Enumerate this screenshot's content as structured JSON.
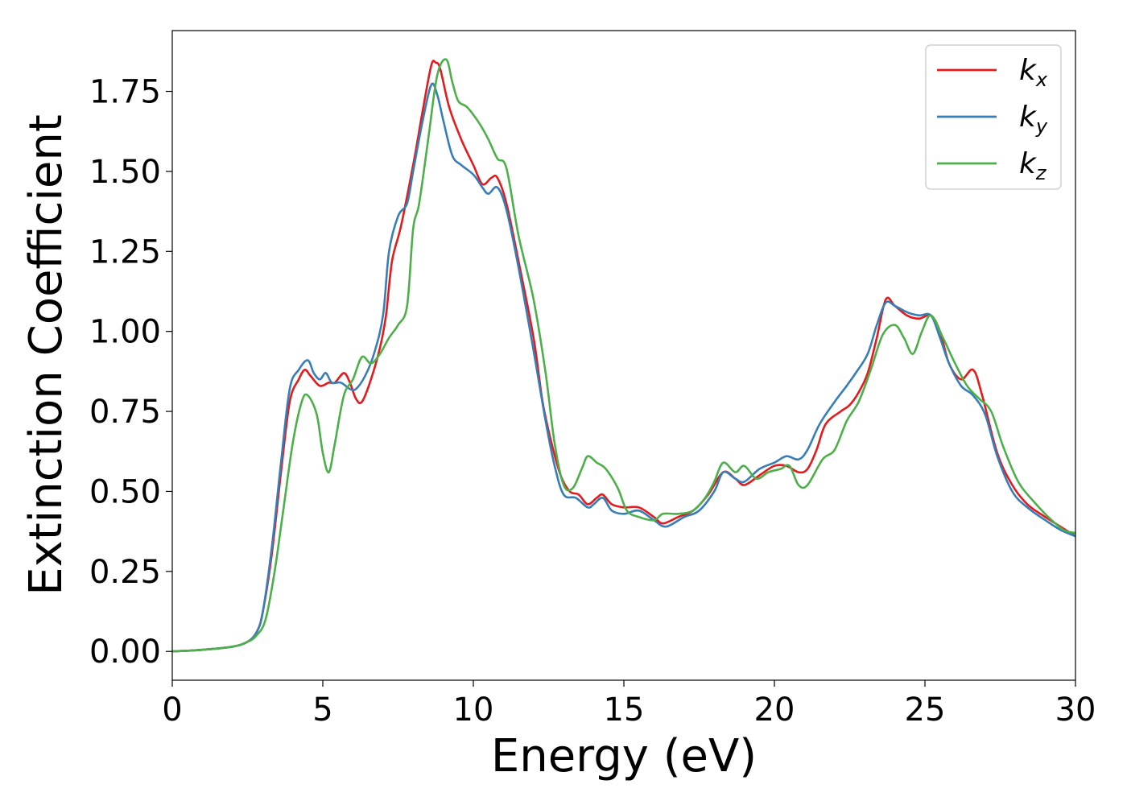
{
  "chart_data": {
    "type": "line",
    "xlabel": "Energy (eV)",
    "ylabel": "Extinction Coefficient",
    "xlim": [
      0,
      30
    ],
    "ylim": [
      -0.09,
      1.94
    ],
    "xticks": [
      0,
      5,
      10,
      15,
      20,
      25,
      30
    ],
    "xtick_labels": [
      "0",
      "5",
      "10",
      "15",
      "20",
      "25",
      "30"
    ],
    "yticks": [
      0,
      0.25,
      0.5,
      0.75,
      1.0,
      1.25,
      1.5,
      1.75
    ],
    "ytick_labels": [
      "0.00",
      "0.25",
      "0.50",
      "0.75",
      "1.00",
      "1.25",
      "1.50",
      "1.75"
    ],
    "grid": false,
    "legend_position": "top-right",
    "series": [
      {
        "name": "k",
        "subscript": "x",
        "color": "#e41a1c",
        "points": [
          [
            0,
            0
          ],
          [
            1,
            0.005
          ],
          [
            2,
            0.015
          ],
          [
            2.5,
            0.03
          ],
          [
            2.8,
            0.06
          ],
          [
            3,
            0.12
          ],
          [
            3.3,
            0.3
          ],
          [
            3.6,
            0.55
          ],
          [
            3.9,
            0.78
          ],
          [
            4.2,
            0.85
          ],
          [
            4.4,
            0.88
          ],
          [
            4.6,
            0.86
          ],
          [
            4.9,
            0.83
          ],
          [
            5.2,
            0.84
          ],
          [
            5.4,
            0.84
          ],
          [
            5.7,
            0.87
          ],
          [
            5.9,
            0.84
          ],
          [
            6.1,
            0.79
          ],
          [
            6.3,
            0.78
          ],
          [
            6.6,
            0.85
          ],
          [
            6.9,
            0.95
          ],
          [
            7.1,
            1.05
          ],
          [
            7.3,
            1.22
          ],
          [
            7.6,
            1.33
          ],
          [
            8.0,
            1.52
          ],
          [
            8.3,
            1.68
          ],
          [
            8.6,
            1.83
          ],
          [
            8.75,
            1.84
          ],
          [
            8.9,
            1.82
          ],
          [
            9.2,
            1.7
          ],
          [
            9.6,
            1.6
          ],
          [
            10,
            1.52
          ],
          [
            10.3,
            1.46
          ],
          [
            10.6,
            1.48
          ],
          [
            10.8,
            1.48
          ],
          [
            11.1,
            1.4
          ],
          [
            11.5,
            1.22
          ],
          [
            12,
            0.98
          ],
          [
            12.3,
            0.78
          ],
          [
            12.6,
            0.65
          ],
          [
            12.9,
            0.55
          ],
          [
            13.2,
            0.5
          ],
          [
            13.5,
            0.49
          ],
          [
            13.8,
            0.46
          ],
          [
            14.1,
            0.48
          ],
          [
            14.3,
            0.49
          ],
          [
            14.6,
            0.46
          ],
          [
            15,
            0.45
          ],
          [
            15.5,
            0.45
          ],
          [
            16,
            0.42
          ],
          [
            16.3,
            0.4
          ],
          [
            16.8,
            0.42
          ],
          [
            17.3,
            0.44
          ],
          [
            17.8,
            0.49
          ],
          [
            18.3,
            0.56
          ],
          [
            18.7,
            0.54
          ],
          [
            19.0,
            0.52
          ],
          [
            19.5,
            0.55
          ],
          [
            20,
            0.58
          ],
          [
            20.4,
            0.58
          ],
          [
            20.8,
            0.56
          ],
          [
            21.1,
            0.57
          ],
          [
            21.4,
            0.63
          ],
          [
            21.7,
            0.71
          ],
          [
            22.2,
            0.75
          ],
          [
            22.5,
            0.77
          ],
          [
            22.8,
            0.81
          ],
          [
            23.1,
            0.87
          ],
          [
            23.4,
            0.98
          ],
          [
            23.7,
            1.1
          ],
          [
            24.0,
            1.08
          ],
          [
            24.4,
            1.05
          ],
          [
            24.8,
            1.04
          ],
          [
            25.2,
            1.05
          ],
          [
            25.5,
            1.0
          ],
          [
            25.8,
            0.9
          ],
          [
            26.2,
            0.85
          ],
          [
            26.6,
            0.88
          ],
          [
            26.9,
            0.8
          ],
          [
            27.4,
            0.62
          ],
          [
            27.9,
            0.52
          ],
          [
            28.4,
            0.46
          ],
          [
            29,
            0.42
          ],
          [
            29.5,
            0.39
          ],
          [
            30,
            0.36
          ]
        ]
      },
      {
        "name": "k",
        "subscript": "y",
        "color": "#377eb8",
        "points": [
          [
            0,
            0
          ],
          [
            1,
            0.005
          ],
          [
            2,
            0.015
          ],
          [
            2.5,
            0.03
          ],
          [
            2.8,
            0.06
          ],
          [
            3,
            0.12
          ],
          [
            3.3,
            0.32
          ],
          [
            3.6,
            0.58
          ],
          [
            3.9,
            0.82
          ],
          [
            4.2,
            0.88
          ],
          [
            4.5,
            0.91
          ],
          [
            4.7,
            0.87
          ],
          [
            4.9,
            0.85
          ],
          [
            5.1,
            0.87
          ],
          [
            5.3,
            0.84
          ],
          [
            5.6,
            0.84
          ],
          [
            5.9,
            0.82
          ],
          [
            6.1,
            0.82
          ],
          [
            6.4,
            0.86
          ],
          [
            6.7,
            0.93
          ],
          [
            7.0,
            1.05
          ],
          [
            7.2,
            1.25
          ],
          [
            7.5,
            1.36
          ],
          [
            7.8,
            1.4
          ],
          [
            8.0,
            1.5
          ],
          [
            8.3,
            1.65
          ],
          [
            8.6,
            1.77
          ],
          [
            8.8,
            1.74
          ],
          [
            9.0,
            1.66
          ],
          [
            9.3,
            1.55
          ],
          [
            9.6,
            1.52
          ],
          [
            10,
            1.49
          ],
          [
            10.3,
            1.45
          ],
          [
            10.5,
            1.43
          ],
          [
            10.8,
            1.45
          ],
          [
            11.1,
            1.38
          ],
          [
            11.5,
            1.2
          ],
          [
            12,
            0.94
          ],
          [
            12.4,
            0.72
          ],
          [
            12.7,
            0.58
          ],
          [
            13,
            0.49
          ],
          [
            13.4,
            0.48
          ],
          [
            13.8,
            0.45
          ],
          [
            14.0,
            0.46
          ],
          [
            14.3,
            0.48
          ],
          [
            14.6,
            0.44
          ],
          [
            15,
            0.43
          ],
          [
            15.5,
            0.44
          ],
          [
            16,
            0.41
          ],
          [
            16.4,
            0.39
          ],
          [
            17,
            0.42
          ],
          [
            17.5,
            0.44
          ],
          [
            18,
            0.5
          ],
          [
            18.3,
            0.56
          ],
          [
            18.7,
            0.54
          ],
          [
            19,
            0.53
          ],
          [
            19.5,
            0.57
          ],
          [
            20,
            0.59
          ],
          [
            20.4,
            0.61
          ],
          [
            20.8,
            0.6
          ],
          [
            21.1,
            0.63
          ],
          [
            21.5,
            0.71
          ],
          [
            22,
            0.78
          ],
          [
            22.4,
            0.83
          ],
          [
            22.7,
            0.87
          ],
          [
            23.1,
            0.93
          ],
          [
            23.4,
            1.02
          ],
          [
            23.7,
            1.09
          ],
          [
            24.0,
            1.08
          ],
          [
            24.4,
            1.06
          ],
          [
            24.8,
            1.05
          ],
          [
            25.2,
            1.05
          ],
          [
            25.5,
            0.98
          ],
          [
            25.8,
            0.9
          ],
          [
            26.2,
            0.83
          ],
          [
            26.6,
            0.8
          ],
          [
            27,
            0.74
          ],
          [
            27.4,
            0.61
          ],
          [
            27.9,
            0.5
          ],
          [
            28.4,
            0.45
          ],
          [
            29,
            0.41
          ],
          [
            29.5,
            0.38
          ],
          [
            30,
            0.36
          ]
        ]
      },
      {
        "name": "k",
        "subscript": "z",
        "color": "#4daf4a",
        "points": [
          [
            0,
            0
          ],
          [
            1,
            0.005
          ],
          [
            2,
            0.015
          ],
          [
            2.5,
            0.03
          ],
          [
            2.8,
            0.05
          ],
          [
            3.1,
            0.1
          ],
          [
            3.4,
            0.25
          ],
          [
            3.7,
            0.45
          ],
          [
            4.0,
            0.65
          ],
          [
            4.3,
            0.78
          ],
          [
            4.5,
            0.8
          ],
          [
            4.8,
            0.74
          ],
          [
            5.0,
            0.62
          ],
          [
            5.2,
            0.56
          ],
          [
            5.4,
            0.65
          ],
          [
            5.7,
            0.8
          ],
          [
            6.0,
            0.85
          ],
          [
            6.3,
            0.92
          ],
          [
            6.6,
            0.9
          ],
          [
            6.9,
            0.93
          ],
          [
            7.2,
            0.98
          ],
          [
            7.5,
            1.02
          ],
          [
            7.8,
            1.08
          ],
          [
            8.0,
            1.32
          ],
          [
            8.2,
            1.4
          ],
          [
            8.5,
            1.6
          ],
          [
            8.8,
            1.8
          ],
          [
            9.1,
            1.85
          ],
          [
            9.3,
            1.78
          ],
          [
            9.5,
            1.72
          ],
          [
            9.8,
            1.7
          ],
          [
            10.2,
            1.65
          ],
          [
            10.5,
            1.6
          ],
          [
            10.8,
            1.54
          ],
          [
            11.1,
            1.51
          ],
          [
            11.5,
            1.3
          ],
          [
            12,
            1.1
          ],
          [
            12.4,
            0.87
          ],
          [
            12.7,
            0.65
          ],
          [
            13,
            0.52
          ],
          [
            13.3,
            0.51
          ],
          [
            13.6,
            0.57
          ],
          [
            13.8,
            0.61
          ],
          [
            14.1,
            0.59
          ],
          [
            14.4,
            0.57
          ],
          [
            14.8,
            0.51
          ],
          [
            15.1,
            0.44
          ],
          [
            15.5,
            0.42
          ],
          [
            16,
            0.41
          ],
          [
            16.3,
            0.43
          ],
          [
            16.8,
            0.43
          ],
          [
            17.3,
            0.44
          ],
          [
            17.7,
            0.48
          ],
          [
            18,
            0.53
          ],
          [
            18.3,
            0.59
          ],
          [
            18.7,
            0.56
          ],
          [
            19.0,
            0.58
          ],
          [
            19.4,
            0.54
          ],
          [
            19.8,
            0.56
          ],
          [
            20.2,
            0.57
          ],
          [
            20.5,
            0.58
          ],
          [
            20.8,
            0.52
          ],
          [
            21.1,
            0.52
          ],
          [
            21.6,
            0.6
          ],
          [
            22,
            0.63
          ],
          [
            22.4,
            0.72
          ],
          [
            22.8,
            0.78
          ],
          [
            23.2,
            0.88
          ],
          [
            23.6,
            0.99
          ],
          [
            24.0,
            1.02
          ],
          [
            24.3,
            0.98
          ],
          [
            24.6,
            0.93
          ],
          [
            24.9,
            1.0
          ],
          [
            25.2,
            1.05
          ],
          [
            25.6,
            0.98
          ],
          [
            26,
            0.9
          ],
          [
            26.4,
            0.83
          ],
          [
            26.8,
            0.79
          ],
          [
            27.2,
            0.75
          ],
          [
            27.6,
            0.64
          ],
          [
            28.1,
            0.53
          ],
          [
            28.6,
            0.47
          ],
          [
            29.1,
            0.42
          ],
          [
            29.6,
            0.38
          ],
          [
            30,
            0.37
          ]
        ]
      }
    ]
  }
}
